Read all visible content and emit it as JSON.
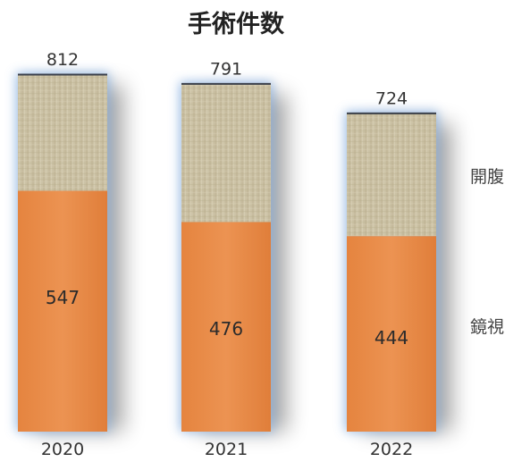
{
  "chart_data": {
    "type": "bar",
    "stacked": true,
    "title": "手術件数",
    "categories": [
      "2020",
      "2021",
      "2022"
    ],
    "totals": [
      812,
      791,
      724
    ],
    "series": [
      {
        "name": "鏡視",
        "values": [
          547,
          476,
          444
        ],
        "color": "#E98C4B"
      },
      {
        "name": "開腹",
        "values": [
          265,
          315,
          280
        ],
        "color": "#C9BEA0"
      }
    ],
    "data_labels": {
      "total": [
        "812",
        "791",
        "724"
      ],
      "inner": [
        "547",
        "476",
        "444"
      ]
    },
    "legend_placement": "right",
    "grid": false
  }
}
